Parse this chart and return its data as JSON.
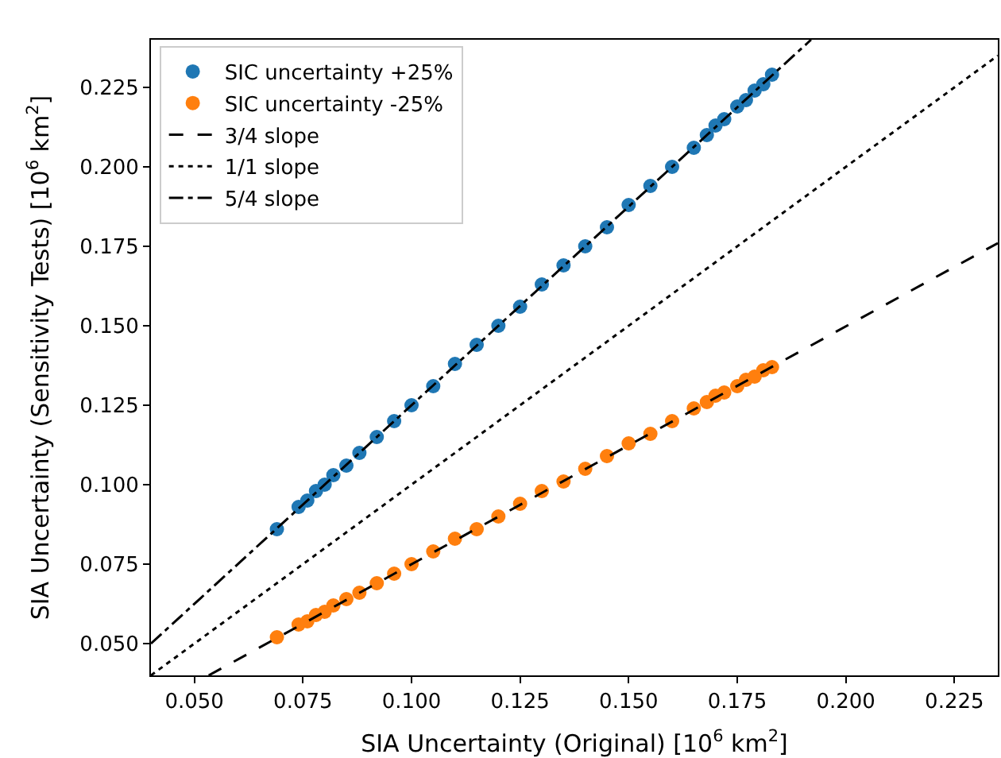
{
  "chart_data": {
    "type": "scatter",
    "xlabel": "SIA Uncertainty (Original) [10$^{6}$ km$^{2}$]",
    "ylabel": "SIA Uncertainty (Sensitivity Tests) [10$^{6}$ km$^{2}$]",
    "xlim": [
      0.04,
      0.235
    ],
    "ylim": [
      0.04,
      0.24
    ],
    "xticks": [
      {
        "value": 0.05,
        "label": "0.050"
      },
      {
        "value": 0.075,
        "label": "0.075"
      },
      {
        "value": 0.1,
        "label": "0.100"
      },
      {
        "value": 0.125,
        "label": "0.125"
      },
      {
        "value": 0.15,
        "label": "0.150"
      },
      {
        "value": 0.175,
        "label": "0.175"
      },
      {
        "value": 0.2,
        "label": "0.200"
      },
      {
        "value": 0.225,
        "label": "0.225"
      }
    ],
    "yticks": [
      {
        "value": 0.05,
        "label": "0.050"
      },
      {
        "value": 0.075,
        "label": "0.075"
      },
      {
        "value": 0.1,
        "label": "0.100"
      },
      {
        "value": 0.125,
        "label": "0.125"
      },
      {
        "value": 0.15,
        "label": "0.150"
      },
      {
        "value": 0.175,
        "label": "0.175"
      },
      {
        "value": 0.2,
        "label": "0.200"
      },
      {
        "value": 0.225,
        "label": "0.225"
      }
    ],
    "legend": "top left",
    "marker": "circle",
    "series": [
      {
        "name": "SIC uncertainty +25%",
        "color": "#1f77b4",
        "x": [
          0.069,
          0.074,
          0.076,
          0.078,
          0.08,
          0.082,
          0.085,
          0.088,
          0.092,
          0.096,
          0.1,
          0.105,
          0.11,
          0.115,
          0.12,
          0.125,
          0.13,
          0.135,
          0.14,
          0.145,
          0.15,
          0.155,
          0.16,
          0.165,
          0.168,
          0.17,
          0.172,
          0.175,
          0.177,
          0.179,
          0.181,
          0.183
        ],
        "values": [
          0.086,
          0.093,
          0.095,
          0.098,
          0.1,
          0.103,
          0.106,
          0.11,
          0.115,
          0.12,
          0.125,
          0.131,
          0.138,
          0.144,
          0.15,
          0.156,
          0.163,
          0.169,
          0.175,
          0.181,
          0.188,
          0.194,
          0.2,
          0.206,
          0.21,
          0.213,
          0.215,
          0.219,
          0.221,
          0.224,
          0.226,
          0.229
        ]
      },
      {
        "name": "SIC uncertainty -25%",
        "color": "#ff7f0e",
        "x": [
          0.069,
          0.074,
          0.076,
          0.078,
          0.08,
          0.082,
          0.085,
          0.088,
          0.092,
          0.096,
          0.1,
          0.105,
          0.11,
          0.115,
          0.12,
          0.125,
          0.13,
          0.135,
          0.14,
          0.145,
          0.15,
          0.155,
          0.16,
          0.165,
          0.168,
          0.17,
          0.172,
          0.175,
          0.177,
          0.179,
          0.181,
          0.183
        ],
        "values": [
          0.052,
          0.056,
          0.057,
          0.059,
          0.06,
          0.062,
          0.064,
          0.066,
          0.069,
          0.072,
          0.075,
          0.079,
          0.083,
          0.086,
          0.09,
          0.094,
          0.098,
          0.101,
          0.105,
          0.109,
          0.113,
          0.116,
          0.12,
          0.124,
          0.126,
          0.128,
          0.129,
          0.131,
          0.133,
          0.134,
          0.136,
          0.137
        ]
      },
      {
        "name": "3/4 slope",
        "color": "#000000",
        "type": "line",
        "line_style": "dashed",
        "marker": "none",
        "x": [
          0.0533,
          0.235
        ],
        "values": [
          0.04,
          0.176
        ]
      },
      {
        "name": "1/1 slope",
        "color": "#000000",
        "type": "line",
        "line_style": "dotted",
        "marker": "none",
        "x": [
          0.04,
          0.235
        ],
        "values": [
          0.04,
          0.235
        ]
      },
      {
        "name": "5/4 slope",
        "color": "#000000",
        "type": "line",
        "line_style": "dashdot",
        "marker": "none",
        "x": [
          0.04,
          0.192
        ],
        "values": [
          0.05,
          0.24
        ]
      }
    ]
  }
}
